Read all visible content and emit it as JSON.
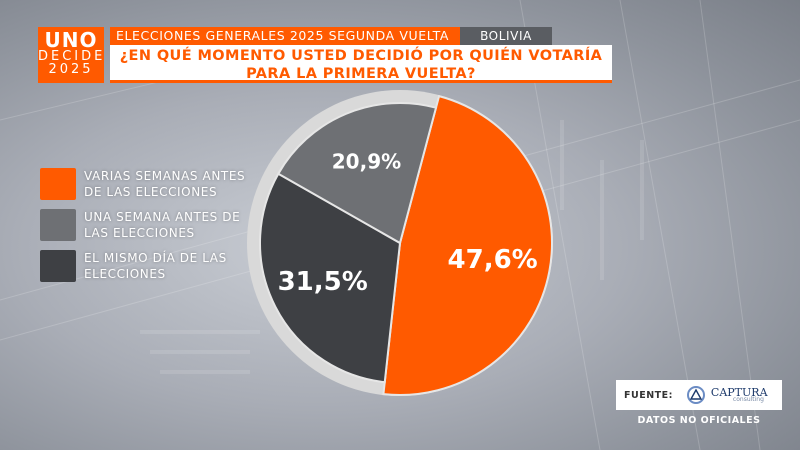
{
  "brand": {
    "line1": "UNO",
    "line2": "DECIDE",
    "line3": "2025"
  },
  "header": {
    "title": "ELECCIONES GENERALES 2025 SEGUNDA VUELTA",
    "country": "BOLIVIA",
    "question": "¿EN QUÉ MOMENTO USTED DECIDIÓ POR QUIÉN VOTARÍA PARA LA PRIMERA VUELTA?"
  },
  "legend": [
    {
      "label": "VARIAS SEMANAS ANTES DE LAS ELECCIONES",
      "color": "#ff5a00"
    },
    {
      "label": "UNA SEMANA ANTES DE LAS ELECCIONES",
      "color": "#6e7074"
    },
    {
      "label": "EL MISMO DÍA DE LAS ELECCIONES",
      "color": "#3e4044"
    }
  ],
  "chart_data": {
    "type": "pie",
    "slices": [
      {
        "label": "VARIAS SEMANAS ANTES DE LAS ELECCIONES",
        "value": 47.6,
        "display": "47,6%",
        "color": "#ff5a00"
      },
      {
        "label": "EL MISMO DÍA DE LAS ELECCIONES",
        "value": 31.5,
        "display": "31,5%",
        "color": "#3e4044"
      },
      {
        "label": "UNA SEMANA ANTES DE LAS ELECCIONES",
        "value": 20.9,
        "display": "20,9%",
        "color": "#6e7074"
      }
    ]
  },
  "source": {
    "label": "FUENTE:",
    "org": "CAPTURA",
    "org_sub": "consulting",
    "disclaimer": "DATOS NO OFICIALES"
  }
}
